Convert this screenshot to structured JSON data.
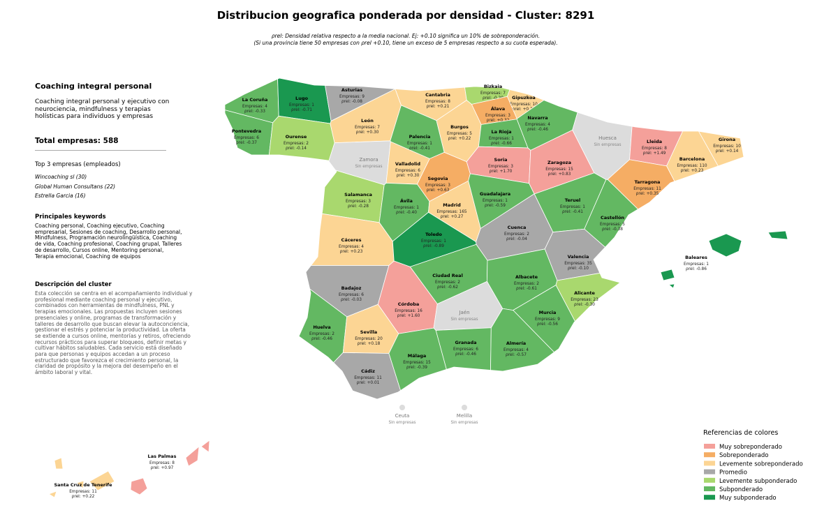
{
  "header": {
    "title": "Distribucion geografica ponderada por densidad - Cluster: 8291",
    "subtitle_lines": [
      "ρrel: Densidad relativa respecto a la media nacional. Ej: +0.10 significa un 10% de sobreponderación.",
      "(Si una provincia tiene 50 empresas con ρrel +0.10, tiene un exceso de 5 empresas respecto a su cuota esperada)."
    ]
  },
  "sidebar": {
    "title": "Coaching integral personal",
    "subtitle": "Coaching integral personal y ejecutivo con neurociencia, mindfulness y terapias holísticas para individuos y empresas",
    "total": "Total empresas: 588",
    "top_title": "Top 3 empresas (empleados)",
    "top": [
      "Wincoaching sl (30)",
      "Global Human Consultans (22)",
      "Estrella Garcia (16)"
    ],
    "keywords_title": "Principales keywords",
    "keywords": "Coaching personal, Coaching ejecutivo, Coaching empresarial, Sesiones de coaching, Desarrollo personal, Mindfulness, Programación neurolingüística, Coaching de vida, Coaching profesional, Coaching grupal, Talleres de desarrollo, Cursos online, Mentoring personal, Terapia emocional, Coaching de equipos",
    "description_title": "Descripción del cluster",
    "description": "Esta colección se centra en el acompañamiento individual y profesional mediante coaching personal y ejecutivo, combinados con herramientas de mindfulness, PNL y terapias emocionales. Las propuestas incluyen sesiones presenciales y online, programas de transformación y talleres de desarrollo que buscan elevar la autoconciencia, gestionar el estrés y potenciar la productividad. La oferta se extiende a cursos online, mentorías y retiros, ofreciendo recursos prácticos para superar bloqueos, definir metas y cultivar hábitos saludables. Cada servicio está diseñado para que personas y equipos accedan a un proceso estructurado que favorezca el crecimiento personal, la claridad de propósito y la mejora del desempeño en el ámbito laboral y vital."
  },
  "provinces": [
    {
      "name": "La Coruña",
      "count": "Empresas: 4",
      "rho": "ρrel: -0.33",
      "color": "#63b862"
    },
    {
      "name": "Lugo",
      "count": "Empresas: 1",
      "rho": "ρrel: -0.71",
      "color": "#1a9850"
    },
    {
      "name": "Asturias",
      "count": "Empresas: 9",
      "rho": "ρrel: -0.08",
      "color": "#a8a8a8"
    },
    {
      "name": "Cantabria",
      "count": "Empresas: 8",
      "rho": "ρrel: +0.21",
      "color": "#fcd594"
    },
    {
      "name": "Bizkaia",
      "count": "Empresas: 7",
      "rho": "ρrel: -0.20",
      "color": "#a9d86e"
    },
    {
      "name": "Gipuzkoa",
      "count": "Empresas: 10",
      "rho": "ρrel: +0.27",
      "color": "#fcd594"
    },
    {
      "name": "Álava",
      "count": "Empresas: 3",
      "rho": "ρrel: +0.32",
      "color": "#f5ad64"
    },
    {
      "name": "Navarra",
      "count": "Empresas: 4",
      "rho": "ρrel: -0.46",
      "color": "#63b862"
    },
    {
      "name": "Pontevedra",
      "count": "Empresas: 6",
      "rho": "ρrel: -0.37",
      "color": "#63b862"
    },
    {
      "name": "Ourense",
      "count": "Empresas: 2",
      "rho": "ρrel: -0.14",
      "color": "#a9d86e"
    },
    {
      "name": "León",
      "count": "Empresas: 7",
      "rho": "ρrel: +0.30",
      "color": "#fcd594"
    },
    {
      "name": "Palencia",
      "count": "Empresas: 1",
      "rho": "ρrel: -0.41",
      "color": "#63b862"
    },
    {
      "name": "Burgos",
      "count": "Empresas: 5",
      "rho": "ρrel: +0.22",
      "color": "#fcd594"
    },
    {
      "name": "La Rioja",
      "count": "Empresas: 1",
      "rho": "ρrel: -0.66",
      "color": "#63b862"
    },
    {
      "name": "Huesca",
      "count": "Sin empresas",
      "color": "#dcdcdc"
    },
    {
      "name": "Lleida",
      "count": "Empresas: 8",
      "rho": "ρrel: +1.49",
      "color": "#f4a09a"
    },
    {
      "name": "Girona",
      "count": "Empresas: 10",
      "rho": "ρrel: +0.14",
      "color": "#fcd594"
    },
    {
      "name": "Zamora",
      "count": "Sin empresas",
      "color": "#dcdcdc"
    },
    {
      "name": "Valladolid",
      "count": "Empresas: 6",
      "rho": "ρrel: +0.30",
      "color": "#fcd594"
    },
    {
      "name": "Soria",
      "count": "Empresas: 3",
      "rho": "ρrel: +1.70",
      "color": "#f4a09a"
    },
    {
      "name": "Zaragoza",
      "count": "Empresas: 15",
      "rho": "ρrel: +0.83",
      "color": "#f4a09a"
    },
    {
      "name": "Barcelona",
      "count": "Empresas: 110",
      "rho": "ρrel: +0.23",
      "color": "#fcd594"
    },
    {
      "name": "Segovia",
      "count": "Empresas: 3",
      "rho": "ρrel: +0.63",
      "color": "#f5ad64"
    },
    {
      "name": "Tarragona",
      "count": "Empresas: 11",
      "rho": "ρrel: +0.35",
      "color": "#f5ad64"
    },
    {
      "name": "Salamanca",
      "count": "Empresas: 3",
      "rho": "ρrel: -0.28",
      "color": "#a9d86e"
    },
    {
      "name": "Guadalajara",
      "count": "Empresas: 1",
      "rho": "ρrel: -0.59",
      "color": "#63b862"
    },
    {
      "name": "Ávila",
      "count": "Empresas: 1",
      "rho": "ρrel: -0.40",
      "color": "#63b862"
    },
    {
      "name": "Madrid",
      "count": "Empresas: 165",
      "rho": "ρrel: +0.27",
      "color": "#fcd594"
    },
    {
      "name": "Teruel",
      "count": "Empresas: 1",
      "rho": "ρrel: -0.41",
      "color": "#63b862"
    },
    {
      "name": "Castellón",
      "count": "Empresas: 5",
      "rho": "ρrel: -0.38",
      "color": "#63b862"
    },
    {
      "name": "Cáceres",
      "count": "Empresas: 4",
      "rho": "ρrel: +0.23",
      "color": "#fcd594"
    },
    {
      "name": "Toledo",
      "count": "Empresas: 1",
      "rho": "ρrel: -0.89",
      "color": "#1a9850"
    },
    {
      "name": "Cuenca",
      "count": "Empresas: 2",
      "rho": "ρrel: -0.04",
      "color": "#a8a8a8"
    },
    {
      "name": "Valencia",
      "count": "Empresas: 35",
      "rho": "ρrel: -0.10",
      "color": "#a8a8a8"
    },
    {
      "name": "Baleares",
      "count": "Empresas: 1",
      "rho": "ρrel: -0.86",
      "color": "#1a9850"
    },
    {
      "name": "Ciudad Real",
      "count": "Empresas: 2",
      "rho": "ρrel: -0.62",
      "color": "#63b862"
    },
    {
      "name": "Albacete",
      "count": "Empresas: 2",
      "rho": "ρrel: -0.61",
      "color": "#63b862"
    },
    {
      "name": "Badajoz",
      "count": "Empresas: 6",
      "rho": "ρrel: -0.03",
      "color": "#a8a8a8"
    },
    {
      "name": "Alicante",
      "count": "Empresas: 23",
      "rho": "ρrel: -0.30",
      "color": "#a9d86e"
    },
    {
      "name": "Córdoba",
      "count": "Empresas: 16",
      "rho": "ρrel: +1.60",
      "color": "#f4a09a"
    },
    {
      "name": "Jaén",
      "count": "Sin empresas",
      "color": "#dcdcdc"
    },
    {
      "name": "Murcia",
      "count": "Empresas: 9",
      "rho": "ρrel: -0.56",
      "color": "#63b862"
    },
    {
      "name": "Huelva",
      "count": "Empresas: 2",
      "rho": "ρrel: -0.46",
      "color": "#63b862"
    },
    {
      "name": "Sevilla",
      "count": "Empresas: 20",
      "rho": "ρrel: +0.18",
      "color": "#fcd594"
    },
    {
      "name": "Granada",
      "count": "Empresas: 6",
      "rho": "ρrel: -0.46",
      "color": "#63b862"
    },
    {
      "name": "Almería",
      "count": "Empresas: 4",
      "rho": "ρrel: -0.57",
      "color": "#63b862"
    },
    {
      "name": "Málaga",
      "count": "Empresas: 15",
      "rho": "ρrel: -0.39",
      "color": "#63b862"
    },
    {
      "name": "Cádiz",
      "count": "Empresas: 11",
      "rho": "ρrel: +0.01",
      "color": "#a8a8a8"
    },
    {
      "name": "Ceuta",
      "count": "Sin empresas",
      "color": "#dcdcdc"
    },
    {
      "name": "Melilla",
      "count": "Sin empresas",
      "color": "#dcdcdc"
    },
    {
      "name": "Las Palmas",
      "count": "Empresas: 8",
      "rho": "ρrel: +0.97",
      "color": "#f4a09a"
    },
    {
      "name": "Santa Cruz de Tenerife",
      "count": "Empresas: 11",
      "rho": "ρrel: +0.22",
      "color": "#fcd594"
    }
  ],
  "legend": {
    "title": "Referencias de colores",
    "items": [
      {
        "label": "Muy sobreponderado",
        "color": "#f4a09a"
      },
      {
        "label": "Sobreponderado",
        "color": "#f5ad64"
      },
      {
        "label": "Levemente sobreponderado",
        "color": "#fcd594"
      },
      {
        "label": "Promedio",
        "color": "#a8a8a8"
      },
      {
        "label": "Levemente subponderado",
        "color": "#a9d86e"
      },
      {
        "label": "Subponderado",
        "color": "#63b862"
      },
      {
        "label": "Muy subponderado",
        "color": "#1a9850"
      }
    ]
  }
}
